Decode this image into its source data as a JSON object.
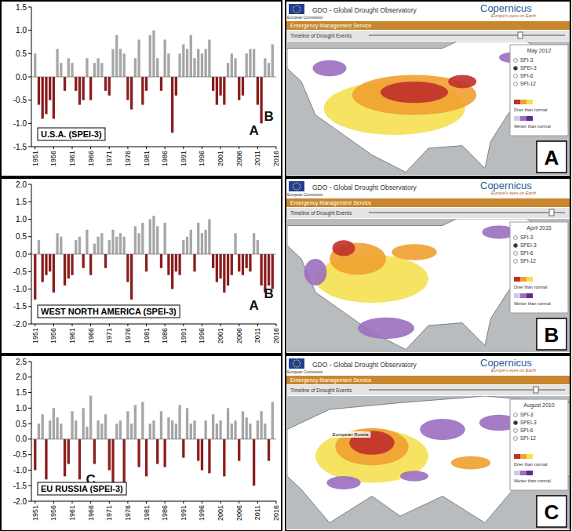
{
  "chart_data": [
    {
      "type": "bar",
      "title": "U.S.A. (SPEI-3)",
      "grid": false,
      "x": [
        1951,
        1952,
        1953,
        1954,
        1955,
        1956,
        1957,
        1958,
        1959,
        1960,
        1961,
        1962,
        1963,
        1964,
        1965,
        1966,
        1967,
        1968,
        1969,
        1970,
        1971,
        1972,
        1973,
        1974,
        1975,
        1976,
        1977,
        1978,
        1979,
        1980,
        1981,
        1982,
        1983,
        1984,
        1985,
        1986,
        1987,
        1988,
        1989,
        1990,
        1991,
        1992,
        1993,
        1994,
        1995,
        1996,
        1997,
        1998,
        1999,
        2000,
        2001,
        2002,
        2003,
        2004,
        2005,
        2006,
        2007,
        2008,
        2009,
        2010,
        2011,
        2012,
        2013,
        2014,
        2015
      ],
      "values": [
        0.5,
        -0.6,
        -0.9,
        -0.8,
        -0.5,
        -0.9,
        0.6,
        0.3,
        -0.3,
        0.4,
        0.3,
        -0.3,
        -0.6,
        -0.5,
        0.4,
        -0.5,
        0.3,
        0.4,
        0.3,
        -0.3,
        -0.4,
        0.6,
        0.9,
        0.6,
        0.5,
        -0.5,
        -0.7,
        0.4,
        0.8,
        -0.6,
        -0.3,
        0.9,
        1.0,
        0.4,
        -0.3,
        0.8,
        0.5,
        -1.2,
        -0.4,
        0.5,
        0.7,
        0.6,
        0.9,
        0.4,
        0.6,
        0.5,
        0.6,
        0.8,
        -0.3,
        -0.6,
        -0.4,
        -0.6,
        0.3,
        0.5,
        0.4,
        -0.5,
        -0.4,
        0.5,
        0.6,
        0.6,
        -0.6,
        -1.0,
        0.4,
        0.3,
        0.7
      ],
      "colors": [
        "#a6a6a6",
        "#8b1e1e",
        "#8b1e1e",
        "#8b1e1e",
        "#8b1e1e",
        "#8b1e1e",
        "#a6a6a6",
        "#a6a6a6",
        "#8b1e1e",
        "#a6a6a6",
        "#a6a6a6",
        "#8b1e1e",
        "#8b1e1e",
        "#8b1e1e",
        "#a6a6a6",
        "#8b1e1e",
        "#a6a6a6",
        "#a6a6a6",
        "#a6a6a6",
        "#8b1e1e",
        "#8b1e1e",
        "#a6a6a6",
        "#a6a6a6",
        "#a6a6a6",
        "#a6a6a6",
        "#8b1e1e",
        "#8b1e1e",
        "#a6a6a6",
        "#a6a6a6",
        "#8b1e1e",
        "#8b1e1e",
        "#a6a6a6",
        "#a6a6a6",
        "#a6a6a6",
        "#8b1e1e",
        "#a6a6a6",
        "#a6a6a6",
        "#8b1e1e",
        "#8b1e1e",
        "#a6a6a6",
        "#a6a6a6",
        "#a6a6a6",
        "#a6a6a6",
        "#a6a6a6",
        "#a6a6a6",
        "#a6a6a6",
        "#a6a6a6",
        "#a6a6a6",
        "#8b1e1e",
        "#8b1e1e",
        "#8b1e1e",
        "#8b1e1e",
        "#a6a6a6",
        "#a6a6a6",
        "#a6a6a6",
        "#8b1e1e",
        "#8b1e1e",
        "#a6a6a6",
        "#a6a6a6",
        "#a6a6a6",
        "#8b1e1e",
        "#8b1e1e",
        "#a6a6a6",
        "#a6a6a6",
        "#a6a6a6"
      ],
      "xlim": [
        1950,
        2016
      ],
      "xticks": [
        1951,
        1956,
        1961,
        1966,
        1971,
        1976,
        1981,
        1986,
        1991,
        1996,
        2001,
        2006,
        2011,
        2016
      ],
      "ylim": [
        -1.5,
        1.5
      ],
      "yticks": [
        -1.5,
        {
          "value": -1,
          "label": "-1.0"
        },
        -0.5,
        {
          "value": 0,
          "label": "0.0"
        },
        0.5,
        {
          "value": 1,
          "label": "1.0"
        },
        1.5
      ],
      "annotations": [
        {
          "text": "A",
          "x": 2010,
          "y": -1.25
        },
        {
          "text": "B",
          "x": 2014,
          "y": -0.95
        }
      ]
    },
    {
      "type": "bar",
      "title": "WEST NORTH AMERICA (SPEI-3)",
      "grid": false,
      "x": [
        1951,
        1952,
        1953,
        1954,
        1955,
        1956,
        1957,
        1958,
        1959,
        1960,
        1961,
        1962,
        1963,
        1964,
        1965,
        1966,
        1967,
        1968,
        1969,
        1970,
        1971,
        1972,
        1973,
        1974,
        1975,
        1976,
        1977,
        1978,
        1979,
        1980,
        1981,
        1982,
        1983,
        1984,
        1985,
        1986,
        1987,
        1988,
        1989,
        1990,
        1991,
        1992,
        1993,
        1994,
        1995,
        1996,
        1997,
        1998,
        1999,
        2000,
        2001,
        2002,
        2003,
        2004,
        2005,
        2006,
        2007,
        2008,
        2009,
        2010,
        2011,
        2012,
        2013,
        2014,
        2015
      ],
      "values": [
        -1.3,
        0.4,
        -0.8,
        -0.6,
        -0.5,
        -1.1,
        0.6,
        0.5,
        -0.9,
        -0.7,
        -0.6,
        0.4,
        0.5,
        -0.4,
        0.7,
        -0.6,
        0.3,
        0.5,
        0.6,
        -0.4,
        0.4,
        0.7,
        0.5,
        0.6,
        0.5,
        -0.8,
        -1.3,
        0.8,
        0.6,
        0.9,
        -0.5,
        1.0,
        1.1,
        0.8,
        -0.4,
        0.9,
        -0.6,
        -1.0,
        -0.5,
        -0.6,
        0.4,
        0.5,
        0.7,
        -0.5,
        0.9,
        0.6,
        0.7,
        1.0,
        -0.4,
        -0.8,
        -0.7,
        -1.1,
        -0.9,
        -0.6,
        0.6,
        -0.5,
        -0.6,
        -0.4,
        -0.5,
        0.6,
        0.4,
        -0.9,
        -1.1,
        -0.9,
        -1.0
      ],
      "colors": [
        "#8b1e1e",
        "#a6a6a6",
        "#8b1e1e",
        "#8b1e1e",
        "#8b1e1e",
        "#8b1e1e",
        "#a6a6a6",
        "#a6a6a6",
        "#8b1e1e",
        "#8b1e1e",
        "#8b1e1e",
        "#a6a6a6",
        "#a6a6a6",
        "#8b1e1e",
        "#a6a6a6",
        "#8b1e1e",
        "#a6a6a6",
        "#a6a6a6",
        "#a6a6a6",
        "#8b1e1e",
        "#a6a6a6",
        "#a6a6a6",
        "#a6a6a6",
        "#a6a6a6",
        "#a6a6a6",
        "#8b1e1e",
        "#8b1e1e",
        "#a6a6a6",
        "#a6a6a6",
        "#a6a6a6",
        "#8b1e1e",
        "#a6a6a6",
        "#a6a6a6",
        "#a6a6a6",
        "#8b1e1e",
        "#a6a6a6",
        "#8b1e1e",
        "#8b1e1e",
        "#8b1e1e",
        "#8b1e1e",
        "#a6a6a6",
        "#a6a6a6",
        "#a6a6a6",
        "#8b1e1e",
        "#a6a6a6",
        "#a6a6a6",
        "#a6a6a6",
        "#a6a6a6",
        "#8b1e1e",
        "#8b1e1e",
        "#8b1e1e",
        "#8b1e1e",
        "#8b1e1e",
        "#8b1e1e",
        "#a6a6a6",
        "#8b1e1e",
        "#8b1e1e",
        "#8b1e1e",
        "#8b1e1e",
        "#a6a6a6",
        "#a6a6a6",
        "#8b1e1e",
        "#8b1e1e",
        "#8b1e1e",
        "#8b1e1e"
      ],
      "xlim": [
        1950,
        2016
      ],
      "xticks": [
        1951,
        1956,
        1961,
        1966,
        1971,
        1976,
        1981,
        1986,
        1991,
        1996,
        2001,
        2006,
        2011,
        2016
      ],
      "ylim": [
        -2,
        2
      ],
      "yticks": [
        {
          "value": -2,
          "label": "-2.0"
        },
        -1.5,
        {
          "value": -1,
          "label": "-1.0"
        },
        -0.5,
        {
          "value": 0,
          "label": "0.0"
        },
        0.5,
        {
          "value": 1,
          "label": "1.0"
        },
        1.5,
        {
          "value": 2,
          "label": "2.0"
        }
      ],
      "annotations": [
        {
          "text": "A",
          "x": 2010,
          "y": -1.6
        },
        {
          "text": "B",
          "x": 2014,
          "y": -1.25
        }
      ]
    },
    {
      "type": "bar",
      "title": "EU RUSSIA (SPEI-3)",
      "grid": false,
      "x": [
        1951,
        1952,
        1953,
        1954,
        1955,
        1956,
        1957,
        1958,
        1959,
        1960,
        1961,
        1962,
        1963,
        1964,
        1965,
        1966,
        1967,
        1968,
        1969,
        1970,
        1971,
        1972,
        1973,
        1974,
        1975,
        1976,
        1977,
        1978,
        1979,
        1980,
        1981,
        1982,
        1983,
        1984,
        1985,
        1986,
        1987,
        1988,
        1989,
        1990,
        1991,
        1992,
        1993,
        1994,
        1995,
        1996,
        1997,
        1998,
        1999,
        2000,
        2001,
        2002,
        2003,
        2004,
        2005,
        2006,
        2007,
        2008,
        2009,
        2010,
        2011,
        2012,
        2013,
        2014,
        2015
      ],
      "values": [
        -1.0,
        0.5,
        0.8,
        -1.3,
        0.6,
        1.0,
        0.7,
        0.5,
        -1.2,
        -0.8,
        0.9,
        0.6,
        -1.3,
        1.0,
        0.4,
        1.4,
        -0.8,
        0.6,
        0.5,
        0.8,
        -1.0,
        -1.5,
        0.5,
        0.6,
        -1.4,
        0.9,
        0.5,
        1.1,
        -0.9,
        1.2,
        -1.2,
        0.5,
        0.6,
        -0.8,
        0.9,
        -0.9,
        0.7,
        0.6,
        0.5,
        1.1,
        -0.6,
        1.0,
        0.5,
        0.6,
        -0.7,
        -1.0,
        0.6,
        -1.1,
        0.8,
        0.5,
        0.6,
        -1.2,
        1.0,
        0.5,
        0.6,
        -0.7,
        0.9,
        0.7,
        0.5,
        -1.5,
        0.6,
        0.9,
        0.5,
        -0.7,
        1.2
      ],
      "colors": [
        "#8b1e1e",
        "#a6a6a6",
        "#a6a6a6",
        "#8b1e1e",
        "#a6a6a6",
        "#a6a6a6",
        "#a6a6a6",
        "#a6a6a6",
        "#8b1e1e",
        "#8b1e1e",
        "#a6a6a6",
        "#a6a6a6",
        "#8b1e1e",
        "#a6a6a6",
        "#a6a6a6",
        "#a6a6a6",
        "#8b1e1e",
        "#a6a6a6",
        "#a6a6a6",
        "#a6a6a6",
        "#8b1e1e",
        "#8b1e1e",
        "#a6a6a6",
        "#a6a6a6",
        "#8b1e1e",
        "#a6a6a6",
        "#a6a6a6",
        "#a6a6a6",
        "#8b1e1e",
        "#a6a6a6",
        "#8b1e1e",
        "#a6a6a6",
        "#a6a6a6",
        "#8b1e1e",
        "#a6a6a6",
        "#8b1e1e",
        "#a6a6a6",
        "#a6a6a6",
        "#a6a6a6",
        "#a6a6a6",
        "#8b1e1e",
        "#a6a6a6",
        "#a6a6a6",
        "#a6a6a6",
        "#8b1e1e",
        "#8b1e1e",
        "#a6a6a6",
        "#8b1e1e",
        "#a6a6a6",
        "#a6a6a6",
        "#a6a6a6",
        "#8b1e1e",
        "#a6a6a6",
        "#a6a6a6",
        "#a6a6a6",
        "#8b1e1e",
        "#a6a6a6",
        "#a6a6a6",
        "#a6a6a6",
        "#8b1e1e",
        "#a6a6a6",
        "#a6a6a6",
        "#a6a6a6",
        "#8b1e1e",
        "#a6a6a6"
      ],
      "xlim": [
        1950,
        2016
      ],
      "xticks": [
        1951,
        1956,
        1961,
        1966,
        1971,
        1976,
        1981,
        1986,
        1991,
        1996,
        2001,
        2006,
        2011,
        2016
      ],
      "ylim": [
        -2,
        2.5
      ],
      "yticks": [
        {
          "value": -2,
          "label": "-2.0"
        },
        -1.5,
        {
          "value": -1,
          "label": "-1.0"
        },
        -0.5,
        {
          "value": 0,
          "label": "0.0"
        },
        0.5,
        {
          "value": 1,
          "label": "1.0"
        },
        1.5,
        {
          "value": 2,
          "label": "2.0"
        },
        2.5
      ],
      "annotations": [
        {
          "text": "C",
          "x": 1966,
          "y": -1.45
        }
      ]
    }
  ],
  "map_panels": [
    {
      "label": "A",
      "agency": "European Commission",
      "header": "GDO - Global Drought Observatory",
      "brand": "Copernicus",
      "tagline": "Europe's eyes on Earth",
      "service": "Emergency Management Service",
      "timeline": "Timeline of Drought Events",
      "date": "May 2012",
      "indicators": [
        "SPI-3",
        "SPEI-3",
        "SPI-6",
        "SPI-12"
      ],
      "selected": "SPEI-3",
      "legend_dry": "Drier than normal",
      "legend_wet": "Wetter than normal"
    },
    {
      "label": "B",
      "agency": "European Commission",
      "header": "GDO - Global Drought Observatory",
      "brand": "Copernicus",
      "tagline": "Europe's eyes on Earth",
      "service": "Emergency Management Service",
      "timeline": "Timeline of Drought Events",
      "date": "April 2015",
      "indicators": [
        "SPI-3",
        "SPEI-3",
        "SPI-6",
        "SPI-12"
      ],
      "selected": "SPEI-3",
      "legend_dry": "Drier than normal",
      "legend_wet": "Wetter than normal"
    },
    {
      "label": "C",
      "agency": "European Commission",
      "header": "GDO - Global Drought Observatory",
      "brand": "Copernicus",
      "tagline": "Europe's eyes on Earth",
      "service": "Emergency Management Service",
      "timeline": "Timeline of Drought Events",
      "date": "August 2010",
      "indicators": [
        "SPI-3",
        "SPEI-3",
        "SPI-6",
        "SPI-12"
      ],
      "selected": "SPEI-3",
      "legend_dry": "Drier than normal",
      "legend_wet": "Wetter than normal",
      "region": "European Russia"
    }
  ]
}
